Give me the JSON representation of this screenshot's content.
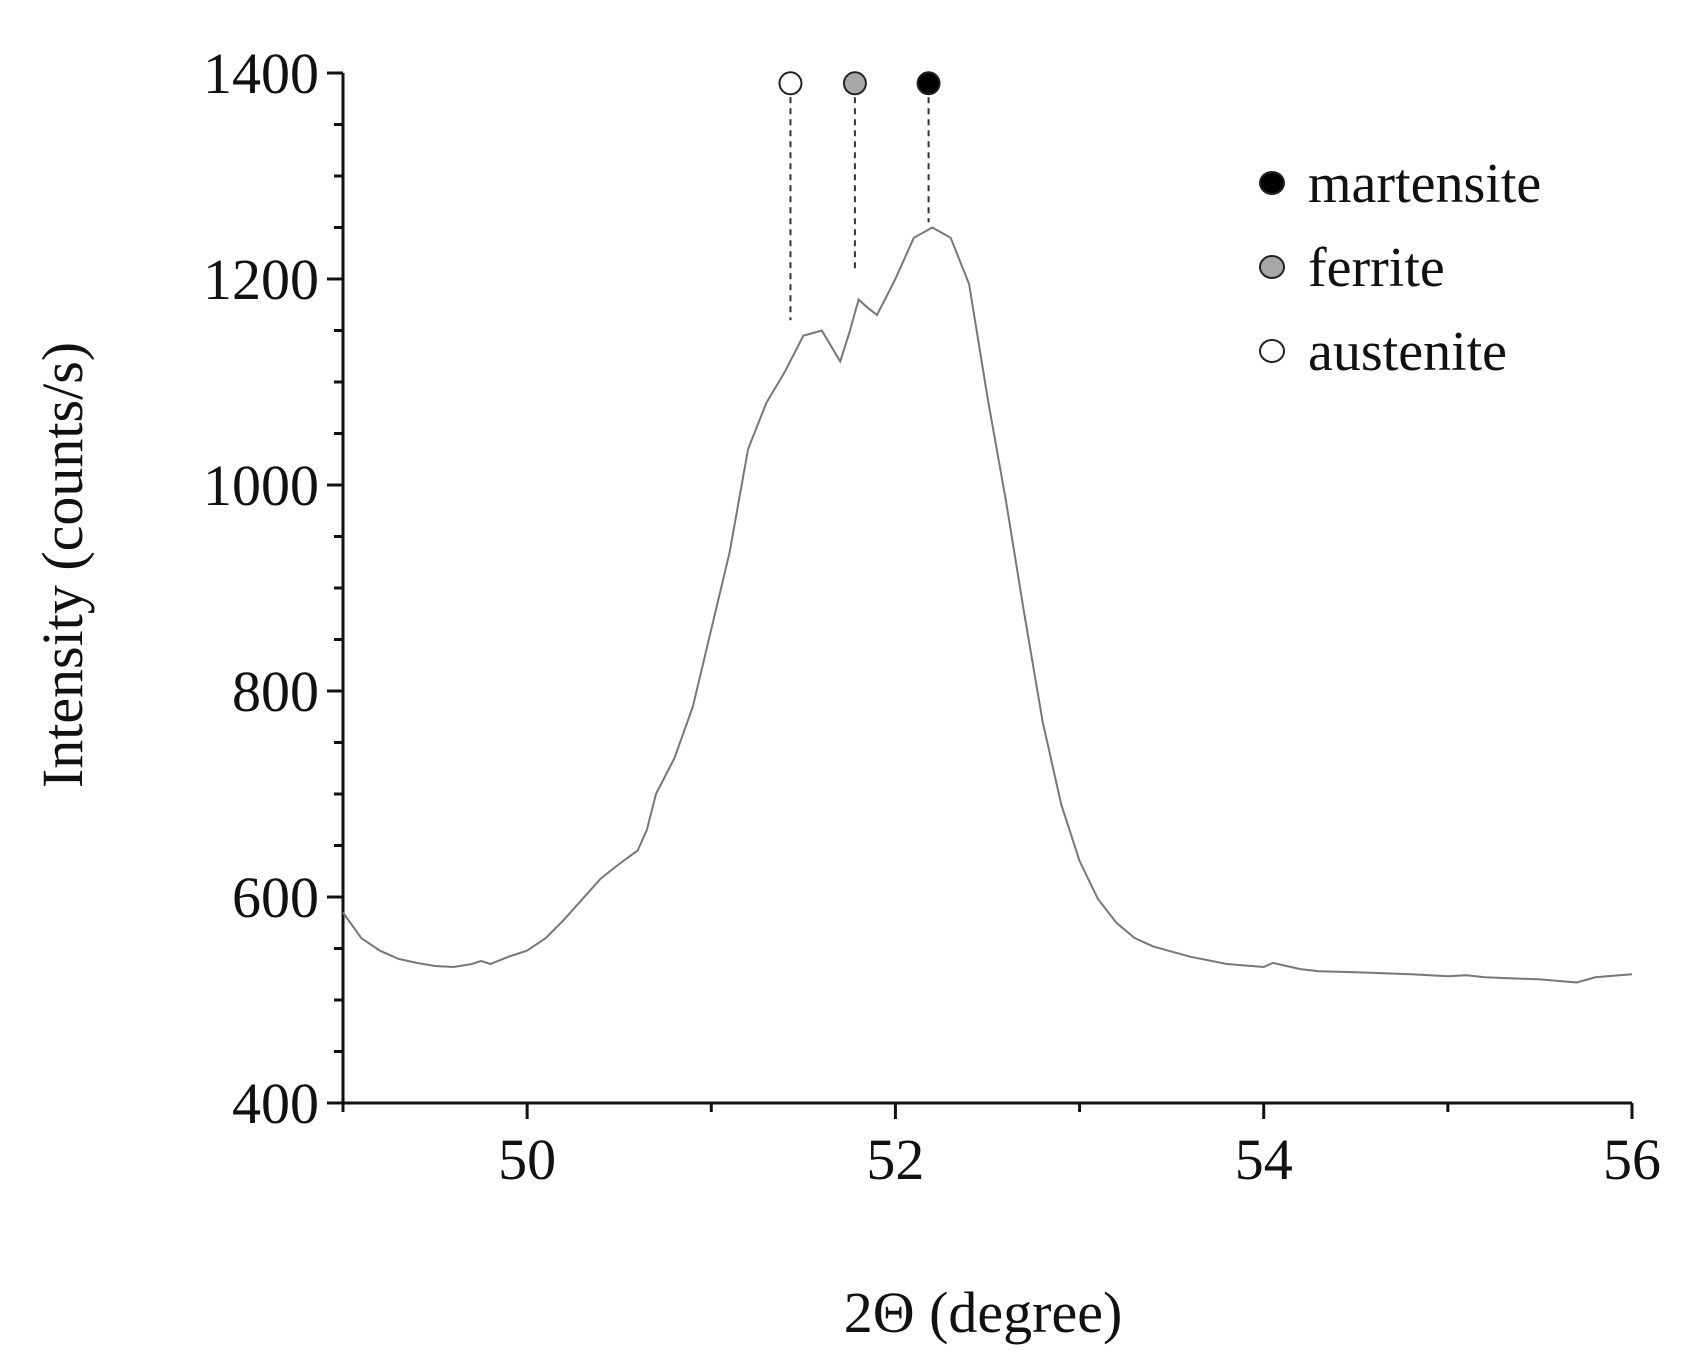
{
  "chart_data": {
    "type": "line",
    "title": "",
    "xlabel": "2Θ (degree)",
    "ylabel": "Intensity (counts/s)",
    "xlim": [
      49,
      56
    ],
    "ylim": [
      400,
      1400
    ],
    "x_ticks": [
      50,
      52,
      54,
      56
    ],
    "x_tick_labels": [
      "50",
      "52",
      "54",
      "56"
    ],
    "y_ticks": [
      400,
      600,
      800,
      1000,
      1200,
      1400
    ],
    "y_tick_labels": [
      "400",
      "600",
      "800",
      "1000",
      "1200",
      "1400"
    ],
    "grid": false,
    "legend_position": "top-right",
    "series": [
      {
        "color": "#777777",
        "x": [
          49.0,
          49.1,
          49.2,
          49.3,
          49.4,
          49.5,
          49.6,
          49.7,
          49.75,
          49.8,
          49.9,
          50.0,
          50.1,
          50.2,
          50.3,
          50.4,
          50.5,
          50.6,
          50.65,
          50.7,
          50.8,
          50.9,
          51.0,
          51.1,
          51.2,
          51.3,
          51.4,
          51.5,
          51.6,
          51.7,
          51.75,
          51.8,
          51.85,
          51.9,
          52.0,
          52.1,
          52.2,
          52.25,
          52.3,
          52.4,
          52.5,
          52.6,
          52.7,
          52.8,
          52.9,
          53.0,
          53.1,
          53.2,
          53.3,
          53.4,
          53.5,
          53.6,
          53.8,
          54.0,
          54.05,
          54.1,
          54.2,
          54.3,
          54.5,
          54.8,
          55.0,
          55.1,
          55.2,
          55.5,
          55.7,
          55.8,
          56.0
        ],
        "y": [
          585,
          560,
          548,
          540,
          536,
          533,
          532,
          535,
          538,
          535,
          542,
          548,
          560,
          578,
          598,
          618,
          632,
          645,
          665,
          700,
          735,
          785,
          860,
          935,
          1035,
          1080,
          1110,
          1145,
          1150,
          1120,
          1148,
          1180,
          1172,
          1165,
          1200,
          1240,
          1250,
          1245,
          1240,
          1195,
          1085,
          985,
          875,
          770,
          690,
          635,
          598,
          575,
          560,
          552,
          547,
          542,
          535,
          532,
          536,
          534,
          530,
          528,
          527,
          525,
          523,
          524,
          522,
          520,
          517,
          522,
          525
        ]
      }
    ],
    "phase_markers": [
      {
        "x": 51.43,
        "y_marker": 1390,
        "y_line_end": 1160,
        "fill": "#ffffff"
      },
      {
        "x": 51.78,
        "y_marker": 1390,
        "y_line_end": 1210,
        "fill": "#a8a8a8"
      },
      {
        "x": 52.18,
        "y_marker": 1390,
        "y_line_end": 1255,
        "fill": "#000000"
      }
    ],
    "legend": [
      {
        "label": "martensite",
        "fill": "#000000"
      },
      {
        "label": "ferrite",
        "fill": "#a8a8a8"
      },
      {
        "label": "austenite",
        "fill": "#ffffff"
      }
    ]
  }
}
